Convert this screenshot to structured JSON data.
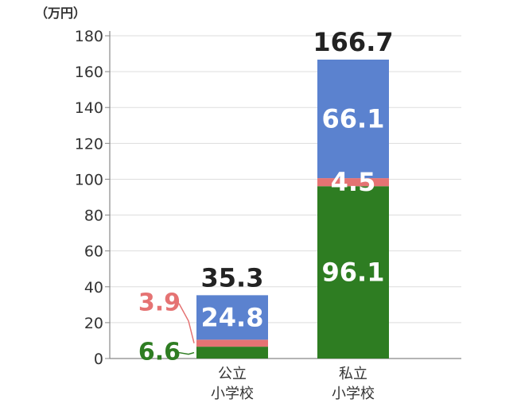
{
  "chart_data": {
    "type": "bar",
    "stacked": true,
    "unit_label": "（万円）",
    "categories": [
      [
        "公立",
        "小学校"
      ],
      [
        "私立",
        "小学校"
      ]
    ],
    "series": [
      {
        "values": [
          6.6,
          96.1
        ],
        "color": "#2e7d22"
      },
      {
        "values": [
          3.9,
          4.5
        ],
        "color": "#e57373"
      },
      {
        "values": [
          24.8,
          66.1
        ],
        "color": "#5b82cf"
      }
    ],
    "totals": [
      35.3,
      166.7
    ],
    "ylim": [
      0,
      180
    ],
    "yticks": [
      0,
      20,
      40,
      60,
      80,
      100,
      120,
      140,
      160,
      180
    ],
    "grid": true
  }
}
